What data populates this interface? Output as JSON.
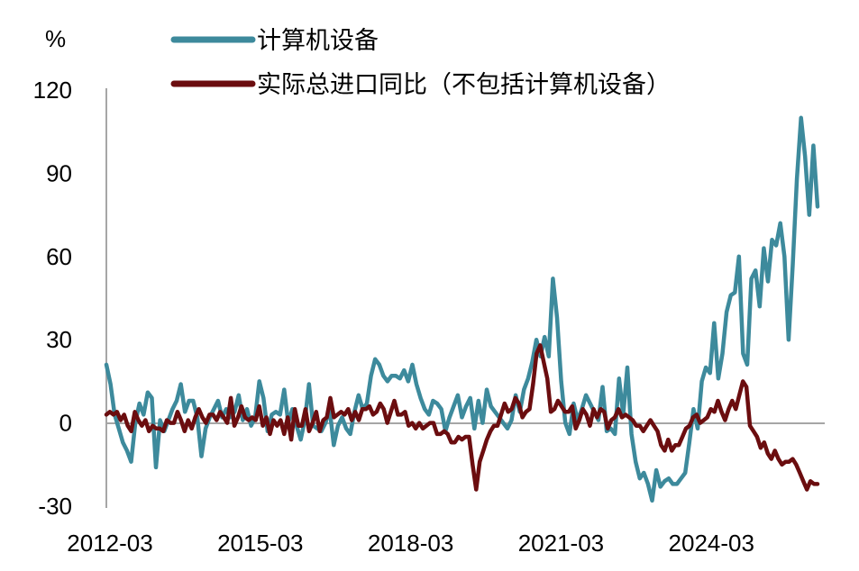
{
  "chart_data": {
    "type": "line",
    "unit": "%",
    "colors": {
      "s1": "#3d8a9c",
      "s2": "#6b0d0f",
      "axis": "#a6a6a6"
    },
    "x_labels": [
      "2012-03",
      "2015-03",
      "2018-03",
      "2021-03",
      "2024-03"
    ],
    "y_ticks": [
      "120",
      "90",
      "60",
      "30",
      "0",
      "-30"
    ],
    "ylim": [
      -30,
      120
    ],
    "x_start": "2012-03",
    "x_end": "2025-06",
    "series": [
      {
        "name": "计算机设备",
        "color": "#3d8a9c",
        "values": [
          21,
          14,
          3,
          -2,
          -7,
          -10,
          -14,
          0,
          7,
          3,
          11,
          9,
          -16,
          1,
          -3,
          1,
          5,
          8,
          14,
          4,
          8,
          8,
          2,
          -12,
          -2,
          2,
          5,
          8,
          2,
          5,
          2,
          4,
          10,
          1,
          5,
          -1,
          2,
          15,
          9,
          -3,
          3,
          4,
          3,
          12,
          0,
          5,
          -1,
          -6,
          1,
          14,
          -1,
          -2,
          -3,
          0,
          5,
          -8,
          -1,
          2,
          -2,
          -4,
          4,
          10,
          5,
          7,
          17,
          23,
          21,
          17,
          15,
          17,
          17,
          16,
          19,
          15,
          21,
          14,
          9,
          5,
          3,
          8,
          7,
          5,
          -3,
          2,
          6,
          10,
          2,
          6,
          9,
          -2,
          8,
          0,
          12,
          6,
          4,
          2,
          0,
          -2,
          1,
          10,
          4,
          12,
          16,
          22,
          30,
          24,
          31,
          24,
          52,
          38,
          15,
          0,
          -4,
          7,
          1,
          5,
          10,
          7,
          4,
          1,
          13,
          -3,
          -2,
          -4,
          16,
          3,
          20,
          -4,
          -14,
          -20,
          -18,
          -22,
          -28,
          -17,
          -23,
          -21,
          -20,
          -22,
          -22,
          -20,
          -18,
          -7,
          5,
          -2,
          15,
          20,
          18,
          36,
          16,
          25,
          40,
          46,
          47,
          60,
          25,
          21,
          52,
          55,
          42,
          63,
          51,
          66,
          64,
          72,
          60,
          30,
          57,
          88,
          110,
          96,
          75,
          100,
          78
        ]
      },
      {
        "name": "实际总进口同比（不包括计算机设备）",
        "color": "#6b0d0f",
        "values": [
          3,
          4,
          3,
          4,
          1,
          3,
          -1,
          -3,
          4,
          1,
          -1,
          1,
          -3,
          -1,
          -2,
          -2,
          -3,
          1,
          0,
          0,
          4,
          1,
          -3,
          1,
          -2,
          2,
          5,
          2,
          0,
          3,
          3,
          1,
          4,
          2,
          0,
          9,
          -1,
          2,
          6,
          2,
          1,
          2,
          1,
          6,
          -1,
          2,
          -4,
          1,
          -1,
          1,
          -4,
          2,
          -6,
          5,
          -1,
          -1,
          5,
          -3,
          0,
          4,
          -3,
          1,
          2,
          9,
          2,
          3,
          4,
          3,
          5,
          1,
          4,
          1,
          5,
          5,
          6,
          3,
          4,
          7,
          5,
          0,
          4,
          8,
          3,
          3,
          4,
          -1,
          0,
          -2,
          0,
          -2,
          -1,
          0,
          0,
          -4,
          -4,
          -3,
          -4,
          -7,
          -7,
          -5,
          -6,
          -5,
          -5,
          -15,
          -24,
          -14,
          -10,
          -6,
          -3,
          -1,
          -1,
          3,
          7,
          4,
          5,
          9,
          7,
          2,
          4,
          5,
          14,
          25,
          28,
          22,
          16,
          4,
          5,
          8,
          6,
          4,
          4,
          6,
          -2,
          1,
          5,
          3,
          -1,
          5,
          2,
          5,
          4,
          -2,
          1,
          2,
          5,
          2,
          3,
          2,
          1,
          -1,
          -1,
          -3,
          -1,
          1,
          -1,
          -3,
          -8,
          -10,
          -6,
          -10,
          -8,
          -8,
          -5,
          -2,
          -1,
          2,
          3,
          0,
          1,
          2,
          5,
          4,
          8,
          4,
          1,
          5,
          8,
          5,
          10,
          15,
          13,
          -1,
          -3,
          -5,
          -9,
          -7,
          -11,
          -13,
          -10,
          -13,
          -15,
          -14,
          -14,
          -13,
          -15,
          -18,
          -21,
          -24,
          -21,
          -22,
          -22
        ]
      }
    ]
  }
}
